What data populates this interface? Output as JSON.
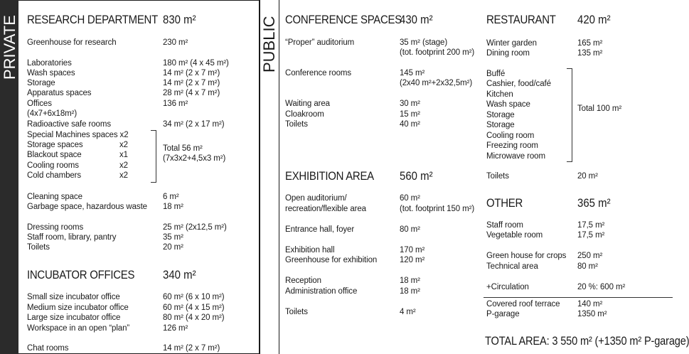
{
  "private_label": "PRIVATE",
  "public_label": "PUBLIC",
  "research": {
    "title": "RESEARCH DEPARTMENT",
    "total": "830 m²",
    "rows": [
      {
        "label": "Greenhouse for research",
        "value": "230 m²"
      },
      {
        "label": "Laboratories",
        "value": "180 m² (4 x 45 m²)"
      },
      {
        "label": "Wash spaces",
        "value": "14 m² (2 x 7 m²)"
      },
      {
        "label": "Storage",
        "value": "14 m² (2 x 7 m²)"
      },
      {
        "label": "Apparatus spaces",
        "value": "28 m² (4 x 7 m²)"
      },
      {
        "label": "Offices",
        "value": "136 m²"
      },
      {
        "label": "(4x7+6x18m²)",
        "value": ""
      },
      {
        "label": "Radioactive safe rooms",
        "value": "34 m² (2 x 17 m²)"
      },
      {
        "label": "Special Machines spaces x2",
        "value": ""
      },
      {
        "label": "Storage spaces",
        "count": "x2"
      },
      {
        "label": "Blackout space",
        "count": "x1"
      },
      {
        "label": "Cooling rooms",
        "count": "x2"
      },
      {
        "label": "Cold chambers",
        "count": "x2"
      },
      {
        "label": "Cleaning space",
        "value": "6 m²"
      },
      {
        "label": "Garbage space, hazardous waste",
        "value": "18 m²"
      },
      {
        "label": "Dressing rooms",
        "value": "25 m² (2x12,5 m²)"
      },
      {
        "label": "Staff room, library, pantry",
        "value": "35 m²"
      },
      {
        "label": "Toilets",
        "value": "20 m²"
      }
    ],
    "group_total": "Total 56 m²",
    "group_total_detail": "(7x3x2+4,5x3 m²)"
  },
  "incubator": {
    "title": "INCUBATOR OFFICES",
    "total": "340 m²",
    "rows": [
      {
        "label": "Small size incubator office",
        "value": "60 m² (6 x 10 m²)"
      },
      {
        "label": "Medium size incubator office",
        "value": "60 m² (4 x 15 m²)"
      },
      {
        "label": "Large size incubator office",
        "value": "80 m² (4 x 20 m²)"
      },
      {
        "label": "Workspace in an open “plan”",
        "value": "126 m²"
      },
      {
        "label": "Chat rooms",
        "value": "14 m² (2 x 7 m²)"
      }
    ]
  },
  "conference": {
    "title": "CONFERENCE SPACES",
    "total": "430 m²",
    "rows": [
      {
        "label": "“Proper” auditorium",
        "value": "35 m² (stage)",
        "value2": "(tot. footprint 200 m²)"
      },
      {
        "label": "Conference rooms",
        "value": "145 m²",
        "value2": "(2x40 m²+2x32,5m²)"
      },
      {
        "label": "Waiting area",
        "value": "30 m²"
      },
      {
        "label": "Cloakroom",
        "value": "15 m²"
      },
      {
        "label": "Toilets",
        "value": "40 m²"
      }
    ]
  },
  "exhibition": {
    "title": "EXHIBITION AREA",
    "total": "560 m²",
    "rows": [
      {
        "label": "Open auditorium/",
        "label2": "recreation/flexible area",
        "value": "60 m²",
        "value2": "(tot. footprint 150 m²)"
      },
      {
        "label": "Entrance hall, foyer",
        "value": "80 m²"
      },
      {
        "label": "Exhibition hall",
        "value": "170 m²"
      },
      {
        "label": "Greenhouse for exhibition",
        "value": "120 m²"
      },
      {
        "label": "Reception",
        "value": "18 m²"
      },
      {
        "label": "Administration office",
        "value": "18 m²"
      },
      {
        "label": "Toilets",
        "value": "4 m²"
      }
    ]
  },
  "restaurant": {
    "title": "RESTAURANT",
    "total": "420 m²",
    "rows": [
      {
        "label": "Winter garden",
        "value": "165 m²"
      },
      {
        "label": "Dining room",
        "value": "135 m²"
      },
      {
        "label": "Buffé"
      },
      {
        "label": "Cashier, food/café"
      },
      {
        "label": "Kitchen"
      },
      {
        "label": "Wash space"
      },
      {
        "label": "Storage"
      },
      {
        "label": "Storage"
      },
      {
        "label": "Cooling room"
      },
      {
        "label": "Freezing room"
      },
      {
        "label": "Microwave room"
      },
      {
        "label": "Toilets",
        "value": "20 m²"
      }
    ],
    "group_total": "Total 100 m²"
  },
  "other": {
    "title": "OTHER",
    "total": "365 m²",
    "rows": [
      {
        "label": "Staff room",
        "value": "17,5 m²"
      },
      {
        "label": "Vegetable room",
        "value": "17,5 m²"
      },
      {
        "label": "Green house for crops",
        "value": "250 m²"
      },
      {
        "label": "Technical area",
        "value": "80 m²"
      },
      {
        "label": "+Circulation",
        "value": "20 %: 600 m²"
      },
      {
        "label": "Covered roof terrace",
        "value": "140 m²"
      },
      {
        "label": "P-garage",
        "value": "1350 m²"
      }
    ]
  },
  "total_area": "TOTAL AREA: 3 550 m² (+1350 m² P-garage)"
}
